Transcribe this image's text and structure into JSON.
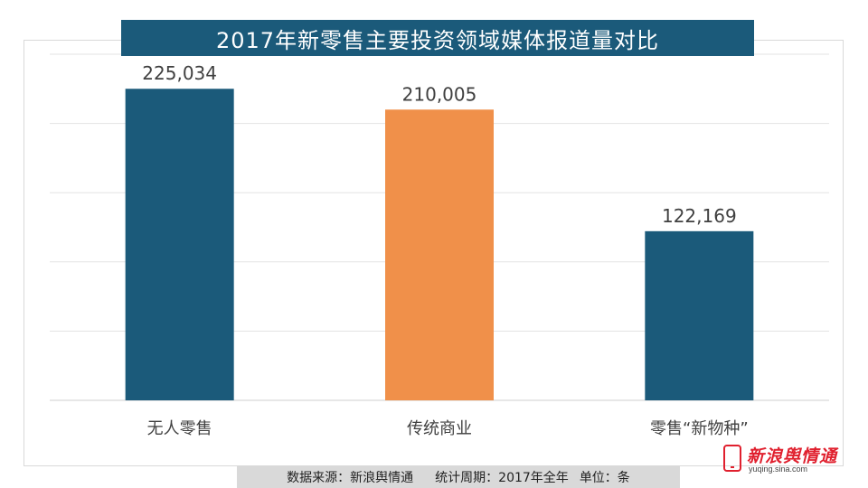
{
  "chart_data": {
    "type": "bar",
    "title": "2017年新零售主要投资领域媒体报道量对比",
    "categories": [
      "无人零售",
      "传统商业",
      "零售“新物种”"
    ],
    "values": [
      225034,
      210005,
      122169
    ],
    "value_labels": [
      "225,034",
      "210,005",
      "122,169"
    ],
    "bar_colors": [
      "#1b5a7a",
      "#f0904a",
      "#1b5a7a"
    ],
    "ylim": [
      0,
      250000
    ],
    "y_gridlines": [
      0,
      50000,
      100000,
      150000,
      200000,
      250000
    ],
    "grid": true,
    "legend": "none"
  },
  "footer": {
    "source": "数据来源：新浪舆情通",
    "period": "统计周期：2017年全年",
    "unit": "单位：条"
  },
  "logo": {
    "brand": "新浪舆情通",
    "domain": "yuqing.sina.com"
  }
}
